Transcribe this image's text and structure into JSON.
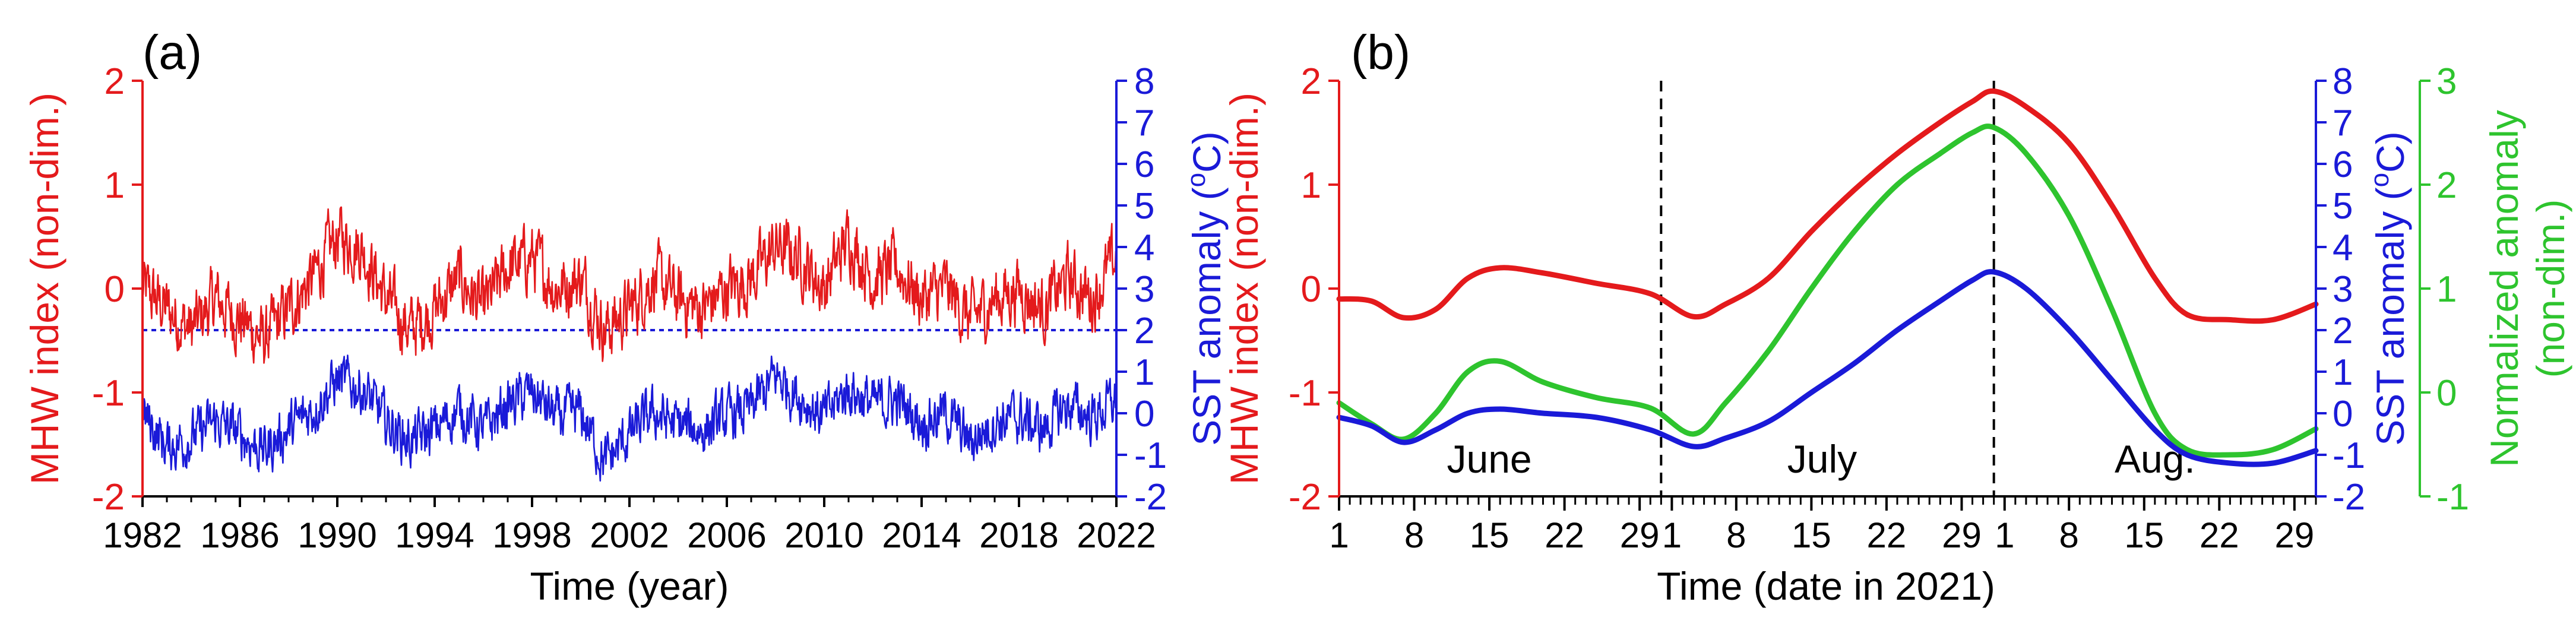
{
  "colors": {
    "red": "#e41a1c",
    "blue": "#1a1ad8",
    "green": "#2ec42e",
    "black": "#000000"
  },
  "chart_data": [
    {
      "panel_label": "(a)",
      "type": "line",
      "xlabel": "Time (year)",
      "x_range": [
        1982,
        2022
      ],
      "x_ticks": [
        1982,
        1986,
        1990,
        1994,
        1998,
        2002,
        2006,
        2010,
        2014,
        2018,
        2022
      ],
      "left_axis": {
        "label": "MHW index (non-dim.)",
        "ylim": [
          -2,
          2
        ],
        "ticks": [
          -2,
          -1,
          0,
          1,
          2
        ]
      },
      "right_axis": {
        "label": "SST anomaly (°C)",
        "label_parts": [
          "SST anomaly (",
          "o",
          "C)"
        ],
        "ylim": [
          -2,
          8
        ],
        "ticks": [
          -2,
          -1,
          0,
          1,
          2,
          3,
          4,
          5,
          6,
          7,
          8
        ]
      },
      "threshold": {
        "axis": "right",
        "value": 2,
        "style": "dotted"
      },
      "series": [
        {
          "name": "MHW index",
          "axis": "left",
          "color": "red",
          "x": [
            1982,
            1983,
            1984,
            1985,
            1986,
            1987,
            1988,
            1989,
            1990,
            1991,
            1992,
            1993,
            1994,
            1995,
            1996,
            1997,
            1998,
            1999,
            2000,
            2001,
            2002,
            2003,
            2004,
            2005,
            2006,
            2007,
            2008,
            2009,
            2010,
            2011,
            2012,
            2013,
            2014,
            2015,
            2016,
            2017,
            2018,
            2019,
            2020,
            2021,
            2022
          ],
          "values": [
            0.0,
            -0.2,
            -0.4,
            -0.1,
            -0.3,
            -0.5,
            -0.2,
            0.1,
            0.5,
            0.4,
            -0.1,
            -0.4,
            -0.2,
            0.1,
            -0.2,
            0.2,
            0.3,
            0.0,
            0.1,
            -0.4,
            -0.2,
            0.1,
            -0.1,
            -0.2,
            0.0,
            0.1,
            0.4,
            0.3,
            0.0,
            0.5,
            0.1,
            0.2,
            -0.1,
            0.0,
            -0.3,
            -0.1,
            0.0,
            -0.2,
            0.1,
            -0.1,
            0.3
          ]
        },
        {
          "name": "SST anomaly",
          "axis": "right",
          "color": "blue",
          "x": [
            1982,
            1983,
            1984,
            1985,
            1986,
            1987,
            1988,
            1989,
            1990,
            1991,
            1992,
            1993,
            1994,
            1995,
            1996,
            1997,
            1998,
            1999,
            2000,
            2001,
            2002,
            2003,
            2004,
            2005,
            2006,
            2007,
            2008,
            2009,
            2010,
            2011,
            2012,
            2013,
            2014,
            2015,
            2016,
            2017,
            2018,
            2019,
            2020,
            2021,
            2022
          ],
          "values": [
            0.0,
            -0.8,
            -0.6,
            -0.2,
            -0.5,
            -0.9,
            -0.4,
            0.1,
            0.8,
            0.6,
            -0.2,
            -0.7,
            -0.4,
            0.1,
            -0.4,
            0.2,
            0.5,
            -0.1,
            0.0,
            -1.2,
            -0.5,
            0.0,
            -0.3,
            -0.4,
            -0.1,
            0.1,
            0.9,
            0.4,
            -0.1,
            0.6,
            0.2,
            0.3,
            -0.2,
            0.0,
            -0.7,
            -0.2,
            -0.1,
            -0.4,
            0.2,
            -0.1,
            0.3
          ]
        }
      ]
    },
    {
      "panel_label": "(b)",
      "type": "line",
      "xlabel": "Time (date in 2021)",
      "x_range": [
        1,
        92
      ],
      "x_tick_labels": [
        {
          "day": 1,
          "label": "1"
        },
        {
          "day": 8,
          "label": "8"
        },
        {
          "day": 15,
          "label": "15"
        },
        {
          "day": 22,
          "label": "22"
        },
        {
          "day": 29,
          "label": "29"
        },
        {
          "day": 32,
          "label": "1"
        },
        {
          "day": 38,
          "label": "8"
        },
        {
          "day": 45,
          "label": "15"
        },
        {
          "day": 52,
          "label": "22"
        },
        {
          "day": 59,
          "label": "29"
        },
        {
          "day": 63,
          "label": "1"
        },
        {
          "day": 69,
          "label": "8"
        },
        {
          "day": 76,
          "label": "15"
        },
        {
          "day": 83,
          "label": "22"
        },
        {
          "day": 90,
          "label": "29"
        }
      ],
      "month_labels": [
        {
          "label": "June",
          "center_day": 15
        },
        {
          "label": "July",
          "center_day": 46
        },
        {
          "label": "Aug.",
          "center_day": 77
        }
      ],
      "month_boundaries": [
        31,
        62
      ],
      "left_axis": {
        "label": "MHW index (non-dim.)",
        "ylim": [
          -2,
          2
        ],
        "ticks": [
          -2,
          -1,
          0,
          1,
          2
        ]
      },
      "right_axis": {
        "label": "SST anomaly (°C)",
        "label_parts": [
          "SST anomaly (",
          "o",
          "C)"
        ],
        "ylim": [
          -2,
          8
        ],
        "ticks": [
          -2,
          -1,
          0,
          1,
          2,
          3,
          4,
          5,
          6,
          7,
          8
        ]
      },
      "right_axis_2": {
        "label": "Normalized anomaly (non-dim.)",
        "label_lines": [
          "Normalized anomaly",
          "(non-dim.)"
        ],
        "ylim": [
          -1,
          3
        ],
        "ticks": [
          -1,
          0,
          1,
          2,
          3
        ]
      },
      "series": [
        {
          "name": "MHW index",
          "axis": "left",
          "color": "red",
          "x": [
            1,
            4,
            7,
            10,
            13,
            16,
            20,
            25,
            30,
            34,
            37,
            41,
            45,
            49,
            53,
            57,
            60,
            62,
            65,
            69,
            73,
            77,
            80,
            84,
            88,
            92
          ],
          "values": [
            -0.1,
            -0.12,
            -0.28,
            -0.2,
            0.1,
            0.2,
            0.15,
            0.05,
            -0.05,
            -0.27,
            -0.15,
            0.1,
            0.55,
            0.95,
            1.3,
            1.6,
            1.8,
            1.9,
            1.75,
            1.4,
            0.8,
            0.1,
            -0.25,
            -0.3,
            -0.3,
            -0.15
          ]
        },
        {
          "name": "SST anomaly",
          "axis": "right",
          "color": "blue",
          "x": [
            1,
            4,
            7,
            10,
            13,
            16,
            20,
            25,
            30,
            34,
            37,
            41,
            45,
            49,
            53,
            57,
            60,
            62,
            65,
            69,
            73,
            77,
            80,
            84,
            88,
            92
          ],
          "values": [
            -0.1,
            -0.3,
            -0.7,
            -0.4,
            0.0,
            0.1,
            0.0,
            -0.1,
            -0.4,
            -0.8,
            -0.6,
            -0.2,
            0.5,
            1.2,
            2.0,
            2.7,
            3.2,
            3.4,
            3.0,
            2.0,
            0.8,
            -0.4,
            -1.0,
            -1.2,
            -1.2,
            -0.9
          ]
        },
        {
          "name": "Normalized anomaly",
          "axis": "right2",
          "color": "green",
          "x": [
            1,
            4,
            7,
            10,
            13,
            16,
            20,
            25,
            30,
            34,
            37,
            41,
            45,
            49,
            53,
            57,
            60,
            62,
            65,
            69,
            73,
            77,
            80,
            84,
            88,
            92
          ],
          "values": [
            -0.1,
            -0.3,
            -0.45,
            -0.2,
            0.2,
            0.3,
            0.1,
            -0.05,
            -0.15,
            -0.4,
            -0.1,
            0.4,
            1.0,
            1.55,
            2.0,
            2.3,
            2.5,
            2.55,
            2.3,
            1.7,
            0.8,
            -0.2,
            -0.55,
            -0.6,
            -0.55,
            -0.35
          ]
        }
      ]
    }
  ]
}
